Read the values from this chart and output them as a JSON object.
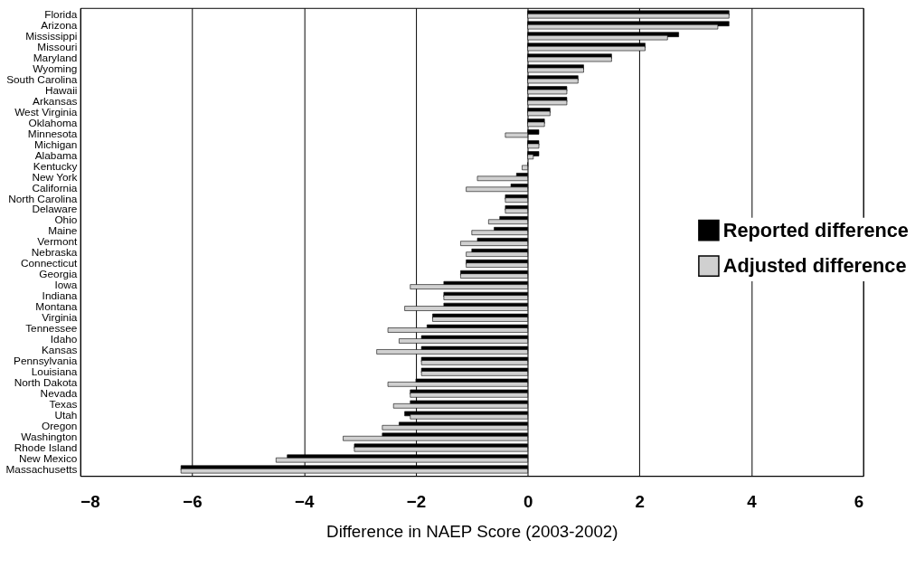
{
  "chart_data": {
    "type": "bar",
    "orientation": "horizontal",
    "xlabel": "Difference in NAEP Score (2003-2002)",
    "categories": [
      "Florida",
      "Arizona",
      "Mississippi",
      "Missouri",
      "Maryland",
      "Wyoming",
      "South Carolina",
      "Hawaii",
      "Arkansas",
      "West Virginia",
      "Oklahoma",
      "Minnesota",
      "Michigan",
      "Alabama",
      "Kentucky",
      "New York",
      "California",
      "North Carolina",
      "Delaware",
      "Ohio",
      "Maine",
      "Vermont",
      "Nebraska",
      "Connecticut",
      "Georgia",
      "Iowa",
      "Indiana",
      "Montana",
      "Virginia",
      "Tennessee",
      "Idaho",
      "Kansas",
      "Pennsylvania",
      "Louisiana",
      "North Dakota",
      "Nevada",
      "Texas",
      "Utah",
      "Oregon",
      "Washington",
      "Rhode Island",
      "New Mexico",
      "Massachusetts"
    ],
    "series": [
      {
        "name": "Reported difference",
        "color": "#000000",
        "values": [
          3.6,
          3.6,
          2.7,
          2.1,
          1.5,
          1.0,
          0.9,
          0.7,
          0.7,
          0.4,
          0.3,
          0.2,
          0.2,
          0.2,
          0,
          -0.2,
          -0.3,
          -0.4,
          -0.4,
          -0.5,
          -0.6,
          -0.9,
          -1.0,
          -1.1,
          -1.2,
          -1.5,
          -1.5,
          -1.5,
          -1.7,
          -1.8,
          -1.9,
          -1.9,
          -1.9,
          -1.9,
          -2.0,
          -2.1,
          -2.1,
          -2.2,
          -2.3,
          -2.6,
          -3.1,
          -4.3,
          -6.2
        ]
      },
      {
        "name": "Adjusted difference",
        "color": "#d0d0d0",
        "values": [
          3.6,
          3.4,
          2.5,
          2.1,
          1.5,
          1.0,
          0.9,
          0.7,
          0.7,
          0.4,
          0.3,
          -0.4,
          0.2,
          0.1,
          -0.1,
          -0.9,
          -1.1,
          -0.4,
          -0.4,
          -0.7,
          -1.0,
          -1.2,
          -1.1,
          -1.1,
          -1.2,
          -2.1,
          -1.5,
          -2.2,
          -1.7,
          -2.5,
          -2.3,
          -2.7,
          -1.9,
          -1.9,
          -2.5,
          -2.1,
          -2.4,
          -2.1,
          -2.6,
          -3.3,
          -3.1,
          -4.5,
          -6.2
        ]
      }
    ],
    "xlim": [
      -8,
      6
    ],
    "xticks": [
      -8,
      -6,
      -4,
      -2,
      0,
      2,
      4,
      6
    ],
    "grid": "x",
    "legend": "right"
  }
}
